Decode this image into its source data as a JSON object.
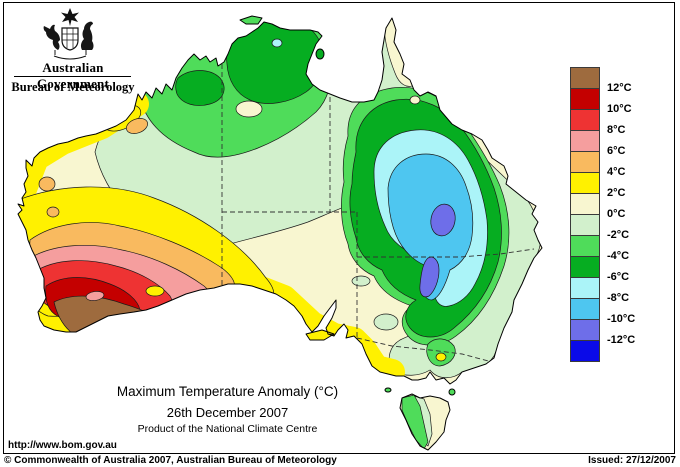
{
  "header": {
    "government_label": "Australian Government",
    "agency_label": "Bureau of Meteorology"
  },
  "map": {
    "title": "Maximum Temperature Anomaly (°C)",
    "date": "26th December 2007",
    "subtitle": "Product of the National Climate Centre",
    "url": "http://www.bom.gov.au"
  },
  "legend": {
    "unit": "°C",
    "swatches": [
      {
        "color": "#9E6B3E",
        "boundary_label": "12°C"
      },
      {
        "color": "#C40000",
        "boundary_label": "10°C"
      },
      {
        "color": "#EE3333",
        "boundary_label": "8°C"
      },
      {
        "color": "#F59E9E",
        "boundary_label": "6°C"
      },
      {
        "color": "#F9BA5F",
        "boundary_label": "4°C"
      },
      {
        "color": "#FFF100",
        "boundary_label": "2°C"
      },
      {
        "color": "#F8F6D0",
        "boundary_label": "0°C"
      },
      {
        "color": "#D2F0CC",
        "boundary_label": "-2°C"
      },
      {
        "color": "#4FDC5A",
        "boundary_label": "-4°C"
      },
      {
        "color": "#06AD21",
        "boundary_label": "-6°C"
      },
      {
        "color": "#ABF4F8",
        "boundary_label": "-8°C"
      },
      {
        "color": "#4EC6F0",
        "boundary_label": "-10°C"
      },
      {
        "color": "#6E6EE9",
        "boundary_label": "-12°C"
      },
      {
        "color": "#0A0AE8",
        "boundary_label": null
      }
    ]
  },
  "footer": {
    "copyright": "© Commonwealth of Australia 2007, Australian Bureau of Meteorology",
    "issued": "Issued: 27/12/2007"
  }
}
